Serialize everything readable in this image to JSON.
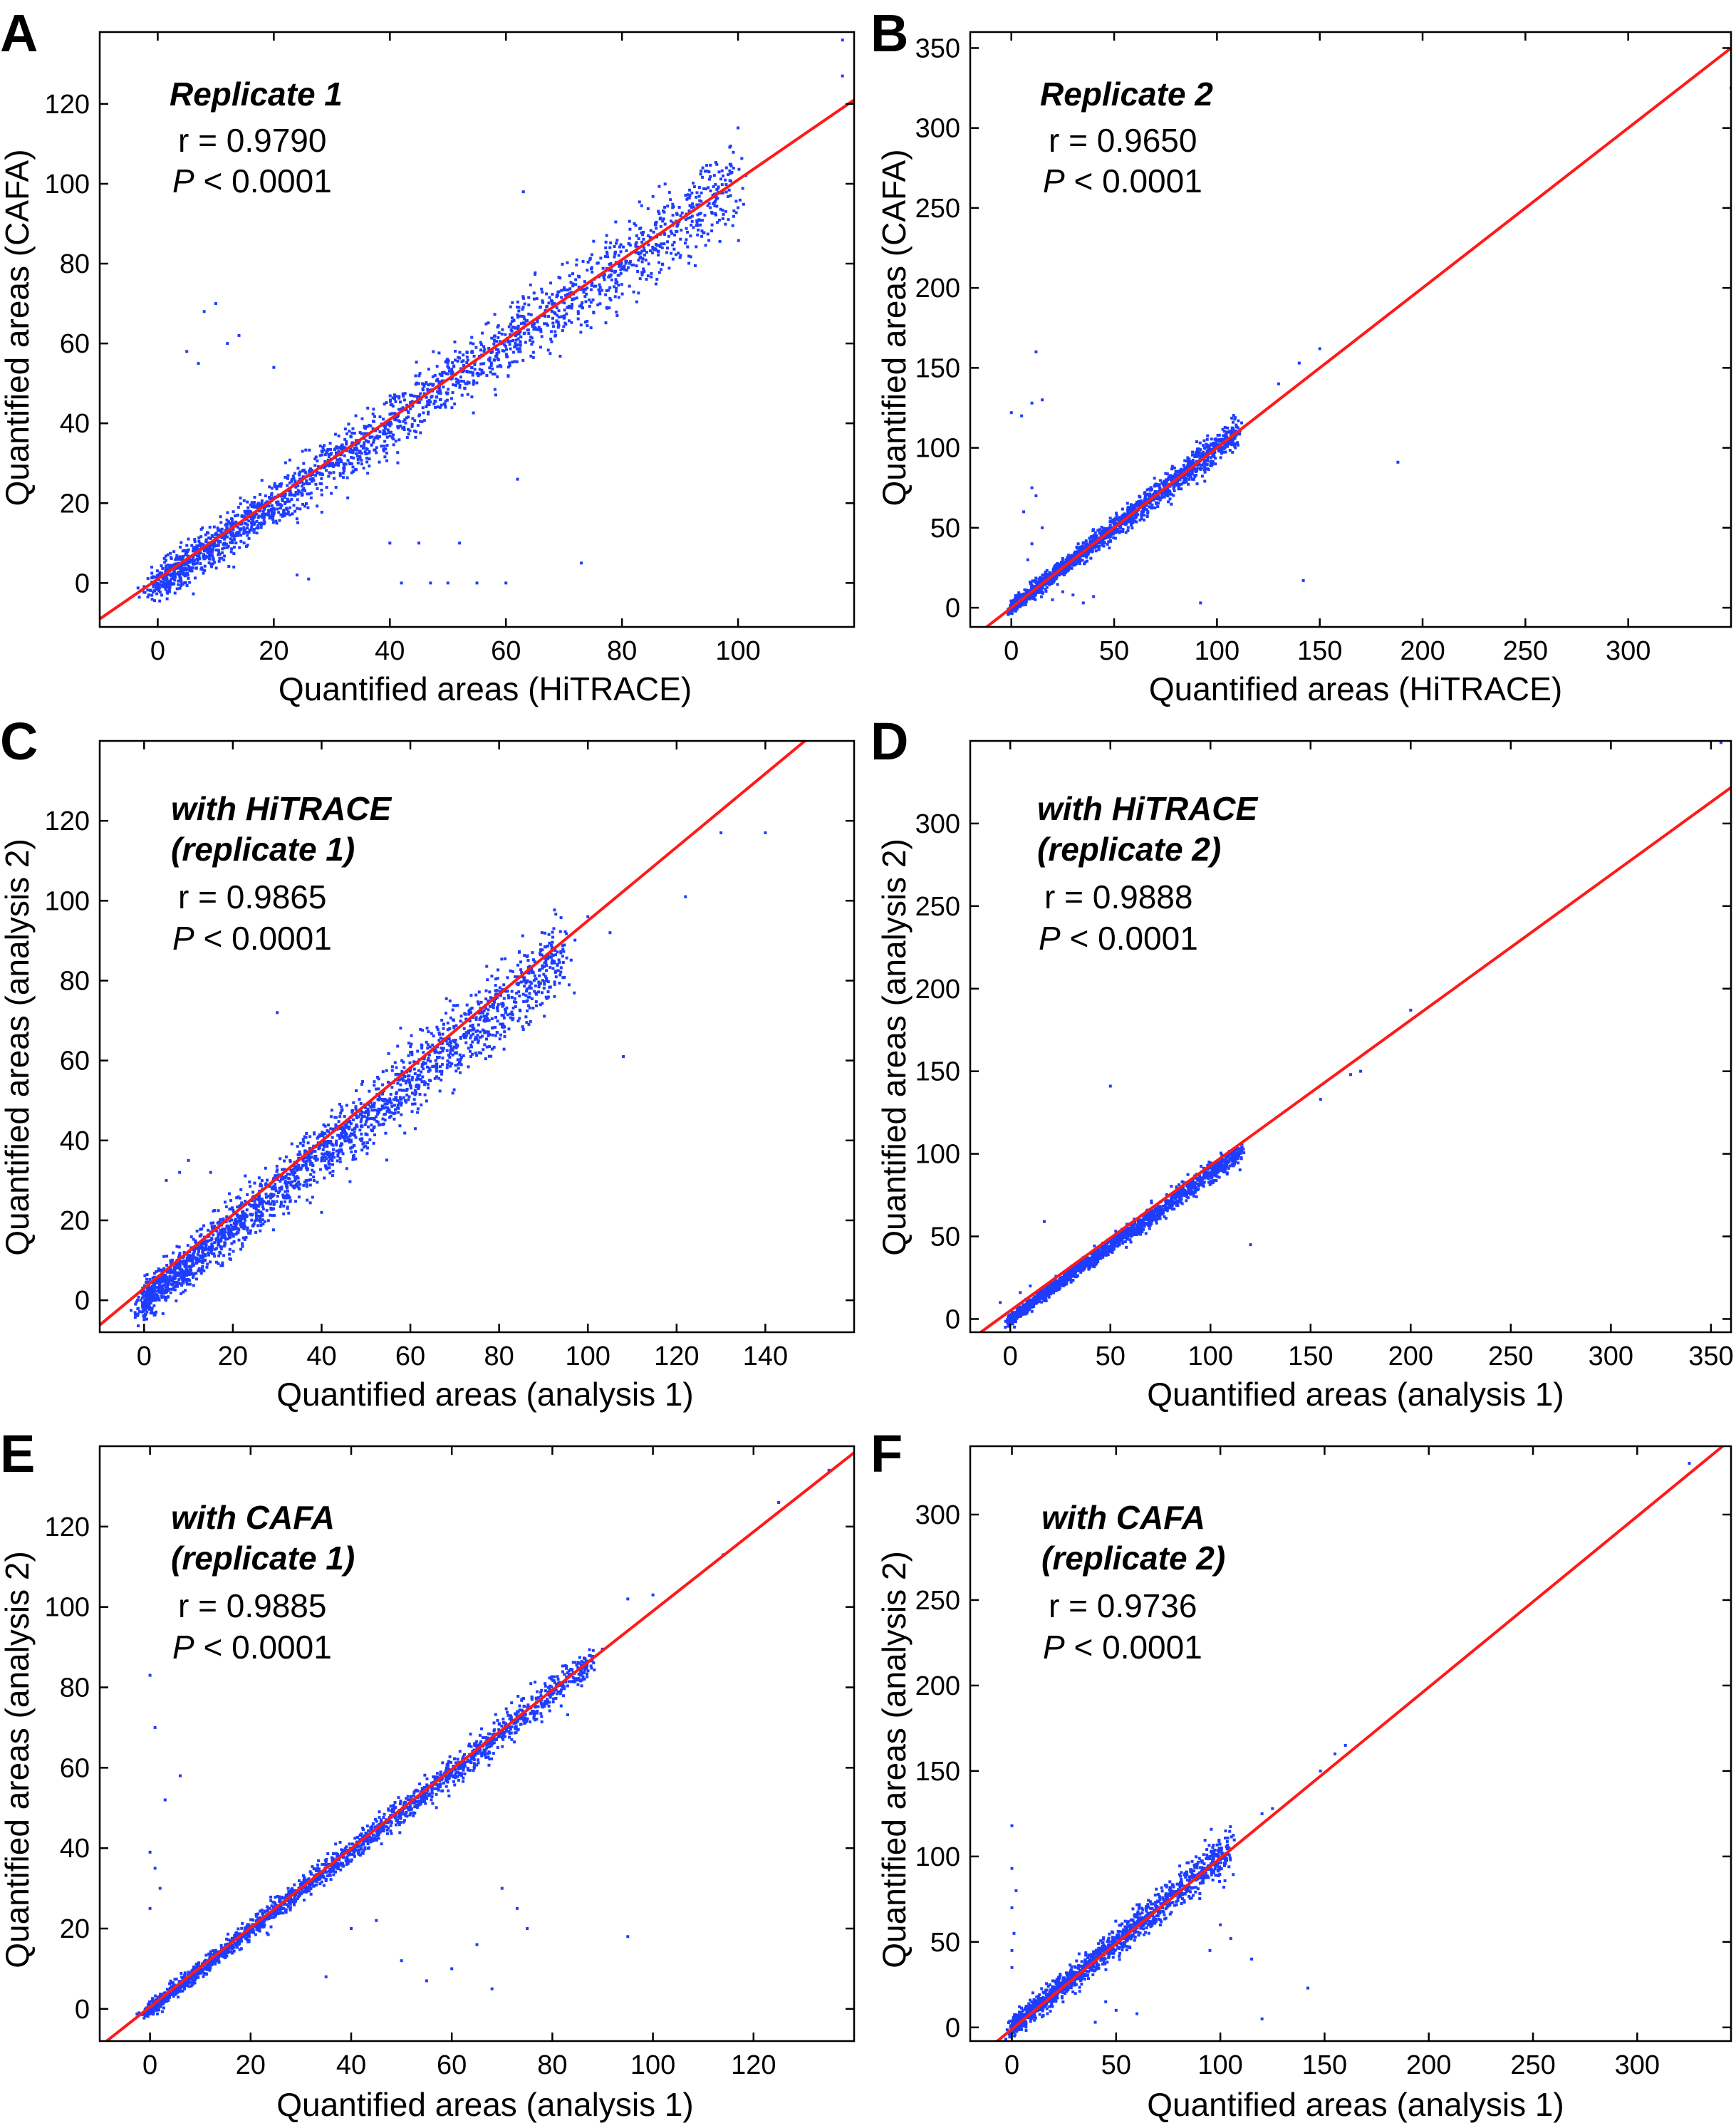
{
  "figure": {
    "panels": [
      {
        "letter": "A",
        "title": "Replicate 1",
        "r_text": "r  = 0.9790",
        "p_label": "P",
        "p_text": " < 0.0001",
        "xlabel": "Quantified areas (HiTRACE)",
        "ylabel": "Quantified areas (CAFA)"
      },
      {
        "letter": "B",
        "title": "Replicate 2",
        "r_text": "r  = 0.9650",
        "p_label": "P",
        "p_text": " < 0.0001",
        "xlabel": "Quantified areas (HiTRACE)",
        "ylabel": "Quantified areas (CAFA)"
      },
      {
        "letter": "C",
        "title": "with HiTRACE",
        "title2": "(replicate 1)",
        "r_text": "r  = 0.9865",
        "p_label": "P",
        "p_text": " < 0.0001",
        "xlabel": "Quantified areas (analysis 1)",
        "ylabel": "Quantified areas (analysis 2)"
      },
      {
        "letter": "D",
        "title": "with HiTRACE",
        "title2": "(replicate 2)",
        "r_text": "r  = 0.9888",
        "p_label": "P",
        "p_text": " < 0.0001",
        "xlabel": "Quantified areas (analysis 1)",
        "ylabel": "Quantified areas (analysis 2)"
      },
      {
        "letter": "E",
        "title": "with CAFA",
        "title2": "(replicate 1)",
        "r_text": "r  = 0.9885",
        "p_label": "P",
        "p_text": " < 0.0001",
        "xlabel": "Quantified areas (analysis 1)",
        "ylabel": "Quantified areas (analysis 2)"
      },
      {
        "letter": "F",
        "title": "with CAFA",
        "title2": "(replicate 2)",
        "r_text": "r  = 0.9736",
        "p_label": "P",
        "p_text": " < 0.0001",
        "xlabel": "Quantified areas (analysis 1)",
        "ylabel": "Quantified areas (analysis 2)"
      }
    ]
  },
  "chart_data": [
    {
      "type": "scatter",
      "panel": "A",
      "title": "Replicate 1",
      "xlabel": "Quantified areas (HiTRACE)",
      "ylabel": "Quantified areas (CAFA)",
      "xlim": [
        -10,
        120
      ],
      "ylim": [
        -11,
        138
      ],
      "xticks": [
        0,
        20,
        40,
        60,
        80,
        100
      ],
      "yticks": [
        0,
        20,
        40,
        60,
        80,
        100,
        120
      ],
      "r": 0.979,
      "p": "< 0.0001",
      "fit_line": {
        "slope": 1.0,
        "intercept": 1.0
      },
      "series": [
        {
          "name": "points",
          "color": "#1f3dff",
          "slope": 1.0,
          "x_range": [
            0,
            100
          ],
          "n": 2200,
          "noise": 4.0
        }
      ],
      "outliers": [
        [
          118,
          136
        ],
        [
          118,
          127
        ],
        [
          100,
          114
        ],
        [
          98,
          104
        ],
        [
          95,
          103
        ],
        [
          100,
          94
        ],
        [
          63,
          98
        ],
        [
          10,
          70
        ],
        [
          8,
          68
        ],
        [
          12,
          60
        ],
        [
          14,
          62
        ],
        [
          5,
          58
        ],
        [
          7,
          55
        ],
        [
          20,
          54
        ],
        [
          42,
          0
        ],
        [
          47,
          0
        ],
        [
          50,
          0
        ],
        [
          55,
          0
        ],
        [
          60,
          0
        ],
        [
          73,
          5
        ],
        [
          40,
          10
        ],
        [
          45,
          10
        ],
        [
          52,
          10
        ],
        [
          62,
          26
        ],
        [
          24,
          2
        ],
        [
          26,
          1
        ]
      ]
    },
    {
      "type": "scatter",
      "panel": "B",
      "title": "Replicate 2",
      "xlabel": "Quantified areas (HiTRACE)",
      "ylabel": "Quantified areas (CAFA)",
      "xlim": [
        -20,
        350
      ],
      "ylim": [
        -12,
        360
      ],
      "xticks": [
        0,
        50,
        100,
        150,
        200,
        250,
        300
      ],
      "yticks": [
        0,
        50,
        100,
        150,
        200,
        250,
        300,
        350
      ],
      "r": 0.965,
      "p": "< 0.0001",
      "fit_line": {
        "slope": 1.0,
        "intercept": 0.0
      },
      "series": [
        {
          "name": "points",
          "color": "#1f3dff",
          "slope": 1.0,
          "x_range": [
            0,
            110
          ],
          "n": 1800,
          "noise": 3.5
        }
      ],
      "outliers": [
        [
          350,
          325
        ],
        [
          150,
          162
        ],
        [
          140,
          153
        ],
        [
          130,
          140
        ],
        [
          12,
          160
        ],
        [
          10,
          128
        ],
        [
          15,
          130
        ],
        [
          0,
          122
        ],
        [
          5,
          120
        ],
        [
          10,
          75
        ],
        [
          12,
          70
        ],
        [
          188,
          91
        ],
        [
          142,
          17
        ],
        [
          92,
          3
        ],
        [
          8,
          30
        ],
        [
          10,
          40
        ],
        [
          15,
          50
        ],
        [
          6,
          60
        ],
        [
          20,
          5
        ],
        [
          25,
          10
        ],
        [
          30,
          8
        ],
        [
          35,
          3
        ],
        [
          40,
          7
        ]
      ]
    },
    {
      "type": "scatter",
      "panel": "C",
      "title": "with HiTRACE (replicate 1)",
      "xlabel": "Quantified areas (analysis 1)",
      "ylabel": "Quantified areas (analysis 2)",
      "xlim": [
        -10,
        160
      ],
      "ylim": [
        -8,
        140
      ],
      "xticks": [
        0,
        20,
        40,
        60,
        80,
        100,
        120,
        140
      ],
      "yticks": [
        0,
        20,
        40,
        60,
        80,
        100,
        120
      ],
      "r": 0.9865,
      "p": "< 0.0001",
      "fit_line": {
        "slope": 0.92,
        "intercept": 3.0
      },
      "series": [
        {
          "name": "points",
          "color": "#1f3dff",
          "slope": 0.92,
          "x_range": [
            0,
            95
          ],
          "n": 2200,
          "noise": 4.0
        }
      ],
      "outliers": [
        [
          130,
          117
        ],
        [
          140,
          117
        ],
        [
          122,
          101
        ],
        [
          108,
          61
        ],
        [
          100,
          96
        ],
        [
          105,
          92
        ],
        [
          30,
          72
        ],
        [
          10,
          35
        ],
        [
          8,
          32
        ],
        [
          15,
          32
        ],
        [
          5,
          30
        ],
        [
          40,
          22
        ]
      ]
    },
    {
      "type": "scatter",
      "panel": "D",
      "title": "with HiTRACE (replicate 2)",
      "xlabel": "Quantified areas (analysis 1)",
      "ylabel": "Quantified areas (analysis 2)",
      "xlim": [
        -20,
        360
      ],
      "ylim": [
        -8,
        350
      ],
      "xticks": [
        0,
        50,
        100,
        150,
        200,
        250,
        300,
        350
      ],
      "yticks": [
        0,
        50,
        100,
        150,
        200,
        250,
        300
      ],
      "r": 0.9888,
      "p": "< 0.0001",
      "fit_line": {
        "slope": 0.88,
        "intercept": 5.0
      },
      "series": [
        {
          "name": "points",
          "color": "#1f3dff",
          "slope": 0.88,
          "x_range": [
            0,
            115
          ],
          "n": 1800,
          "noise": 2.5
        }
      ],
      "outliers": [
        [
          355,
          349
        ],
        [
          200,
          187
        ],
        [
          175,
          150
        ],
        [
          170,
          148
        ],
        [
          155,
          133
        ],
        [
          50,
          141
        ],
        [
          17,
          59
        ],
        [
          120,
          45
        ],
        [
          10,
          20
        ],
        [
          5,
          16
        ],
        [
          -5,
          10
        ]
      ]
    },
    {
      "type": "scatter",
      "panel": "E",
      "title": "with CAFA (replicate 1)",
      "xlabel": "Quantified areas (analysis 1)",
      "ylabel": "Quantified areas (analysis 2)",
      "xlim": [
        -10,
        140
      ],
      "ylim": [
        -8,
        140
      ],
      "xticks": [
        0,
        20,
        40,
        60,
        80,
        100,
        120
      ],
      "yticks": [
        0,
        20,
        40,
        60,
        80,
        100,
        120
      ],
      "r": 0.9885,
      "p": "< 0.0001",
      "fit_line": {
        "slope": 0.985,
        "intercept": 0.5
      },
      "series": [
        {
          "name": "points",
          "color": "#1f3dff",
          "slope": 0.985,
          "x_range": [
            0,
            88
          ],
          "n": 2000,
          "noise": 1.6
        }
      ],
      "outliers": [
        [
          135,
          134
        ],
        [
          125,
          126
        ],
        [
          114,
          113
        ],
        [
          100,
          103
        ],
        [
          95,
          102
        ],
        [
          0,
          83
        ],
        [
          1,
          70
        ],
        [
          6,
          58
        ],
        [
          3,
          52
        ],
        [
          0,
          39
        ],
        [
          1,
          35
        ],
        [
          2,
          30
        ],
        [
          0,
          25
        ],
        [
          65,
          16
        ],
        [
          68,
          5
        ],
        [
          55,
          7
        ],
        [
          95,
          18
        ],
        [
          40,
          20
        ],
        [
          45,
          22
        ],
        [
          50,
          12
        ],
        [
          60,
          10
        ],
        [
          70,
          30
        ],
        [
          73,
          25
        ],
        [
          75,
          20
        ],
        [
          35,
          8
        ]
      ]
    },
    {
      "type": "scatter",
      "panel": "F",
      "title": "with CAFA (replicate 2)",
      "xlabel": "Quantified areas (analysis 1)",
      "ylabel": "Quantified areas (analysis 2)",
      "xlim": [
        -20,
        345
      ],
      "ylim": [
        -8,
        340
      ],
      "xticks": [
        0,
        50,
        100,
        150,
        200,
        250,
        300
      ],
      "yticks": [
        0,
        50,
        100,
        150,
        200,
        250,
        300
      ],
      "r": 0.9736,
      "p": "< 0.0001",
      "fit_line": {
        "slope": 1.0,
        "intercept": -1.0
      },
      "series": [
        {
          "name": "points",
          "color": "#1f3dff",
          "slope": 1.0,
          "x_range": [
            0,
            105
          ],
          "n": 1500,
          "noise": 4.5
        }
      ],
      "outliers": [
        [
          325,
          330
        ],
        [
          160,
          165
        ],
        [
          155,
          160
        ],
        [
          148,
          150
        ],
        [
          120,
          125
        ],
        [
          125,
          128
        ],
        [
          0,
          118
        ],
        [
          0,
          93
        ],
        [
          2,
          80
        ],
        [
          0,
          70
        ],
        [
          1,
          55
        ],
        [
          0,
          45
        ],
        [
          0,
          35
        ],
        [
          115,
          40
        ],
        [
          142,
          23
        ],
        [
          120,
          5
        ],
        [
          100,
          60
        ],
        [
          105,
          52
        ],
        [
          95,
          45
        ],
        [
          45,
          15
        ],
        [
          50,
          10
        ],
        [
          60,
          8
        ],
        [
          40,
          3
        ]
      ]
    }
  ]
}
